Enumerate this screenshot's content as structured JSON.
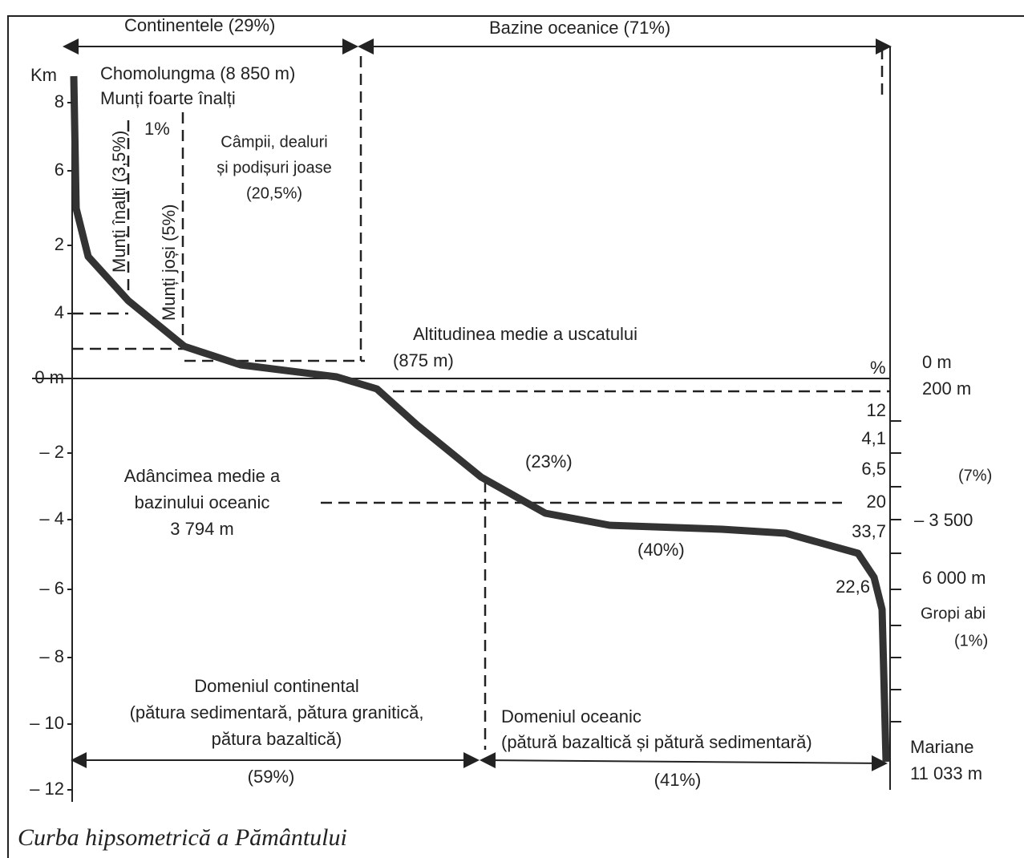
{
  "top": {
    "continents": "Continentele (29%)",
    "oceans": "Bazine oceanice (71%)"
  },
  "left_axis": {
    "unit": "Km",
    "ticks": [
      "8",
      "6",
      "2",
      "4",
      "0 m",
      "– 2",
      "– 4",
      "– 6",
      "– 8",
      "– 10",
      "– 12"
    ]
  },
  "land": {
    "everest": "Chomolungma (8 850 m)",
    "very_high": "Munți foarte înalți",
    "very_high_pct": "1%",
    "high": "Munți înalți (3,5%)",
    "low_mountains": "Munți joși (5%)",
    "plains_1": "Câmpii, dealuri",
    "plains_2": "și podișuri joase",
    "plains_3": "(20,5%)",
    "mean_alt": "Altitudinea medie a uscatului",
    "mean_alt_value": "(875 m)"
  },
  "right_scale": {
    "pct": "%",
    "zero": "0 m",
    "shelf": "200 m",
    "v12": "12",
    "v41": "4,1",
    "v65": "6,5",
    "p7": "(7%)",
    "v20": "20",
    "d3500": "– 3 500",
    "v337": "33,7",
    "d6000": "6 000 m",
    "v226": "22,6",
    "trenches": "Gropi abi",
    "p1": "(1%)",
    "mariana": "Mariane",
    "mariana_depth": "11 033 m"
  },
  "ocean": {
    "p23": "(23%)",
    "p40": "(40%)",
    "mean_depth_1": "Adâncimea medie a",
    "mean_depth_2": "bazinului oceanic",
    "mean_depth_3": "3 794 m"
  },
  "bottom": {
    "cont_1": "Domeniul continental",
    "cont_2": "(pătura sedimentară, pătura granitică,",
    "cont_3": "pătura bazaltică)",
    "ocean_1": "Domeniul oceanic",
    "ocean_2": "(pătură bazaltică și pătură sedimentară)",
    "p59": "(59%)",
    "p41": "(41%)"
  },
  "caption": "Curba hipsometrică a Pământului"
}
